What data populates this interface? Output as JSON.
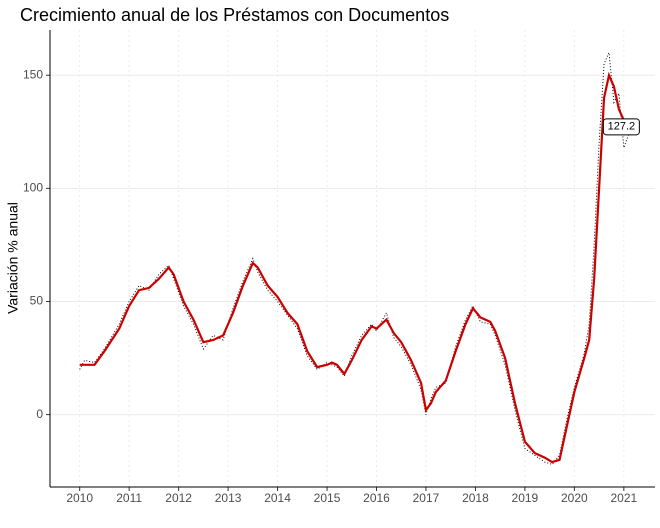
{
  "chart_data": {
    "type": "line",
    "title": "Crecimiento anual de los Préstamos con Documentos",
    "y_label": "Variación % anual",
    "x": [
      2010.0,
      2010.1,
      2010.3,
      2010.5,
      2010.8,
      2011.0,
      2011.2,
      2011.4,
      2011.6,
      2011.8,
      2011.9,
      2012.1,
      2012.3,
      2012.5,
      2012.7,
      2012.9,
      2013.1,
      2013.3,
      2013.5,
      2013.6,
      2013.8,
      2014.0,
      2014.2,
      2014.4,
      2014.6,
      2014.8,
      2015.0,
      2015.1,
      2015.2,
      2015.35,
      2015.5,
      2015.7,
      2015.9,
      2016.0,
      2016.2,
      2016.35,
      2016.5,
      2016.7,
      2016.9,
      2017.0,
      2017.1,
      2017.2,
      2017.4,
      2017.6,
      2017.8,
      2017.95,
      2018.1,
      2018.3,
      2018.4,
      2018.6,
      2018.8,
      2019.0,
      2019.2,
      2019.4,
      2019.55,
      2019.7,
      2019.85,
      2020.0,
      2020.2,
      2020.3,
      2020.4,
      2020.5,
      2020.6,
      2020.7,
      2020.8,
      2020.9,
      2021.0,
      2021.1
    ],
    "series": [
      {
        "color": "#000000",
        "style": "dotted",
        "values": [
          20,
          24,
          23,
          29,
          40,
          50,
          57,
          55,
          62,
          66,
          60,
          48,
          40,
          29,
          35,
          33,
          47,
          59,
          69,
          63,
          55,
          50,
          44,
          38,
          26,
          20,
          23,
          22,
          21,
          17,
          26,
          35,
          40,
          37,
          45,
          34,
          30,
          22,
          11,
          0,
          7,
          12,
          14,
          30,
          42,
          48,
          41,
          40,
          35,
          22,
          2,
          -15,
          -18,
          -21,
          -22,
          -18,
          -2,
          12,
          27,
          40,
          75,
          120,
          155,
          160,
          138,
          142,
          118,
          124
        ]
      },
      {
        "color": "#cc0000",
        "style": "solid",
        "values": [
          22,
          22,
          22,
          28,
          38,
          48,
          55,
          56,
          60,
          65,
          62,
          50,
          42,
          32,
          33,
          35,
          45,
          57,
          67,
          65,
          57,
          52,
          45,
          40,
          28,
          21,
          22,
          23,
          22,
          18,
          24,
          33,
          39,
          38,
          42,
          36,
          32,
          24,
          14,
          2,
          5,
          10,
          15,
          28,
          40,
          47,
          43,
          41,
          37,
          25,
          5,
          -12,
          -17,
          -19,
          -21,
          -20,
          -5,
          10,
          25,
          33,
          60,
          100,
          140,
          150,
          145,
          135,
          130,
          125
        ]
      }
    ],
    "annotation": {
      "x": 2020.95,
      "value": 127.2
    },
    "xlim": [
      2009.4,
      2021.63
    ],
    "xticks": [
      2010,
      2011,
      2012,
      2013,
      2014,
      2015,
      2016,
      2017,
      2018,
      2019,
      2020,
      2021
    ],
    "ylim": [
      -32,
      170
    ],
    "yticks": [
      0,
      50,
      100,
      150
    ],
    "grid": true
  }
}
